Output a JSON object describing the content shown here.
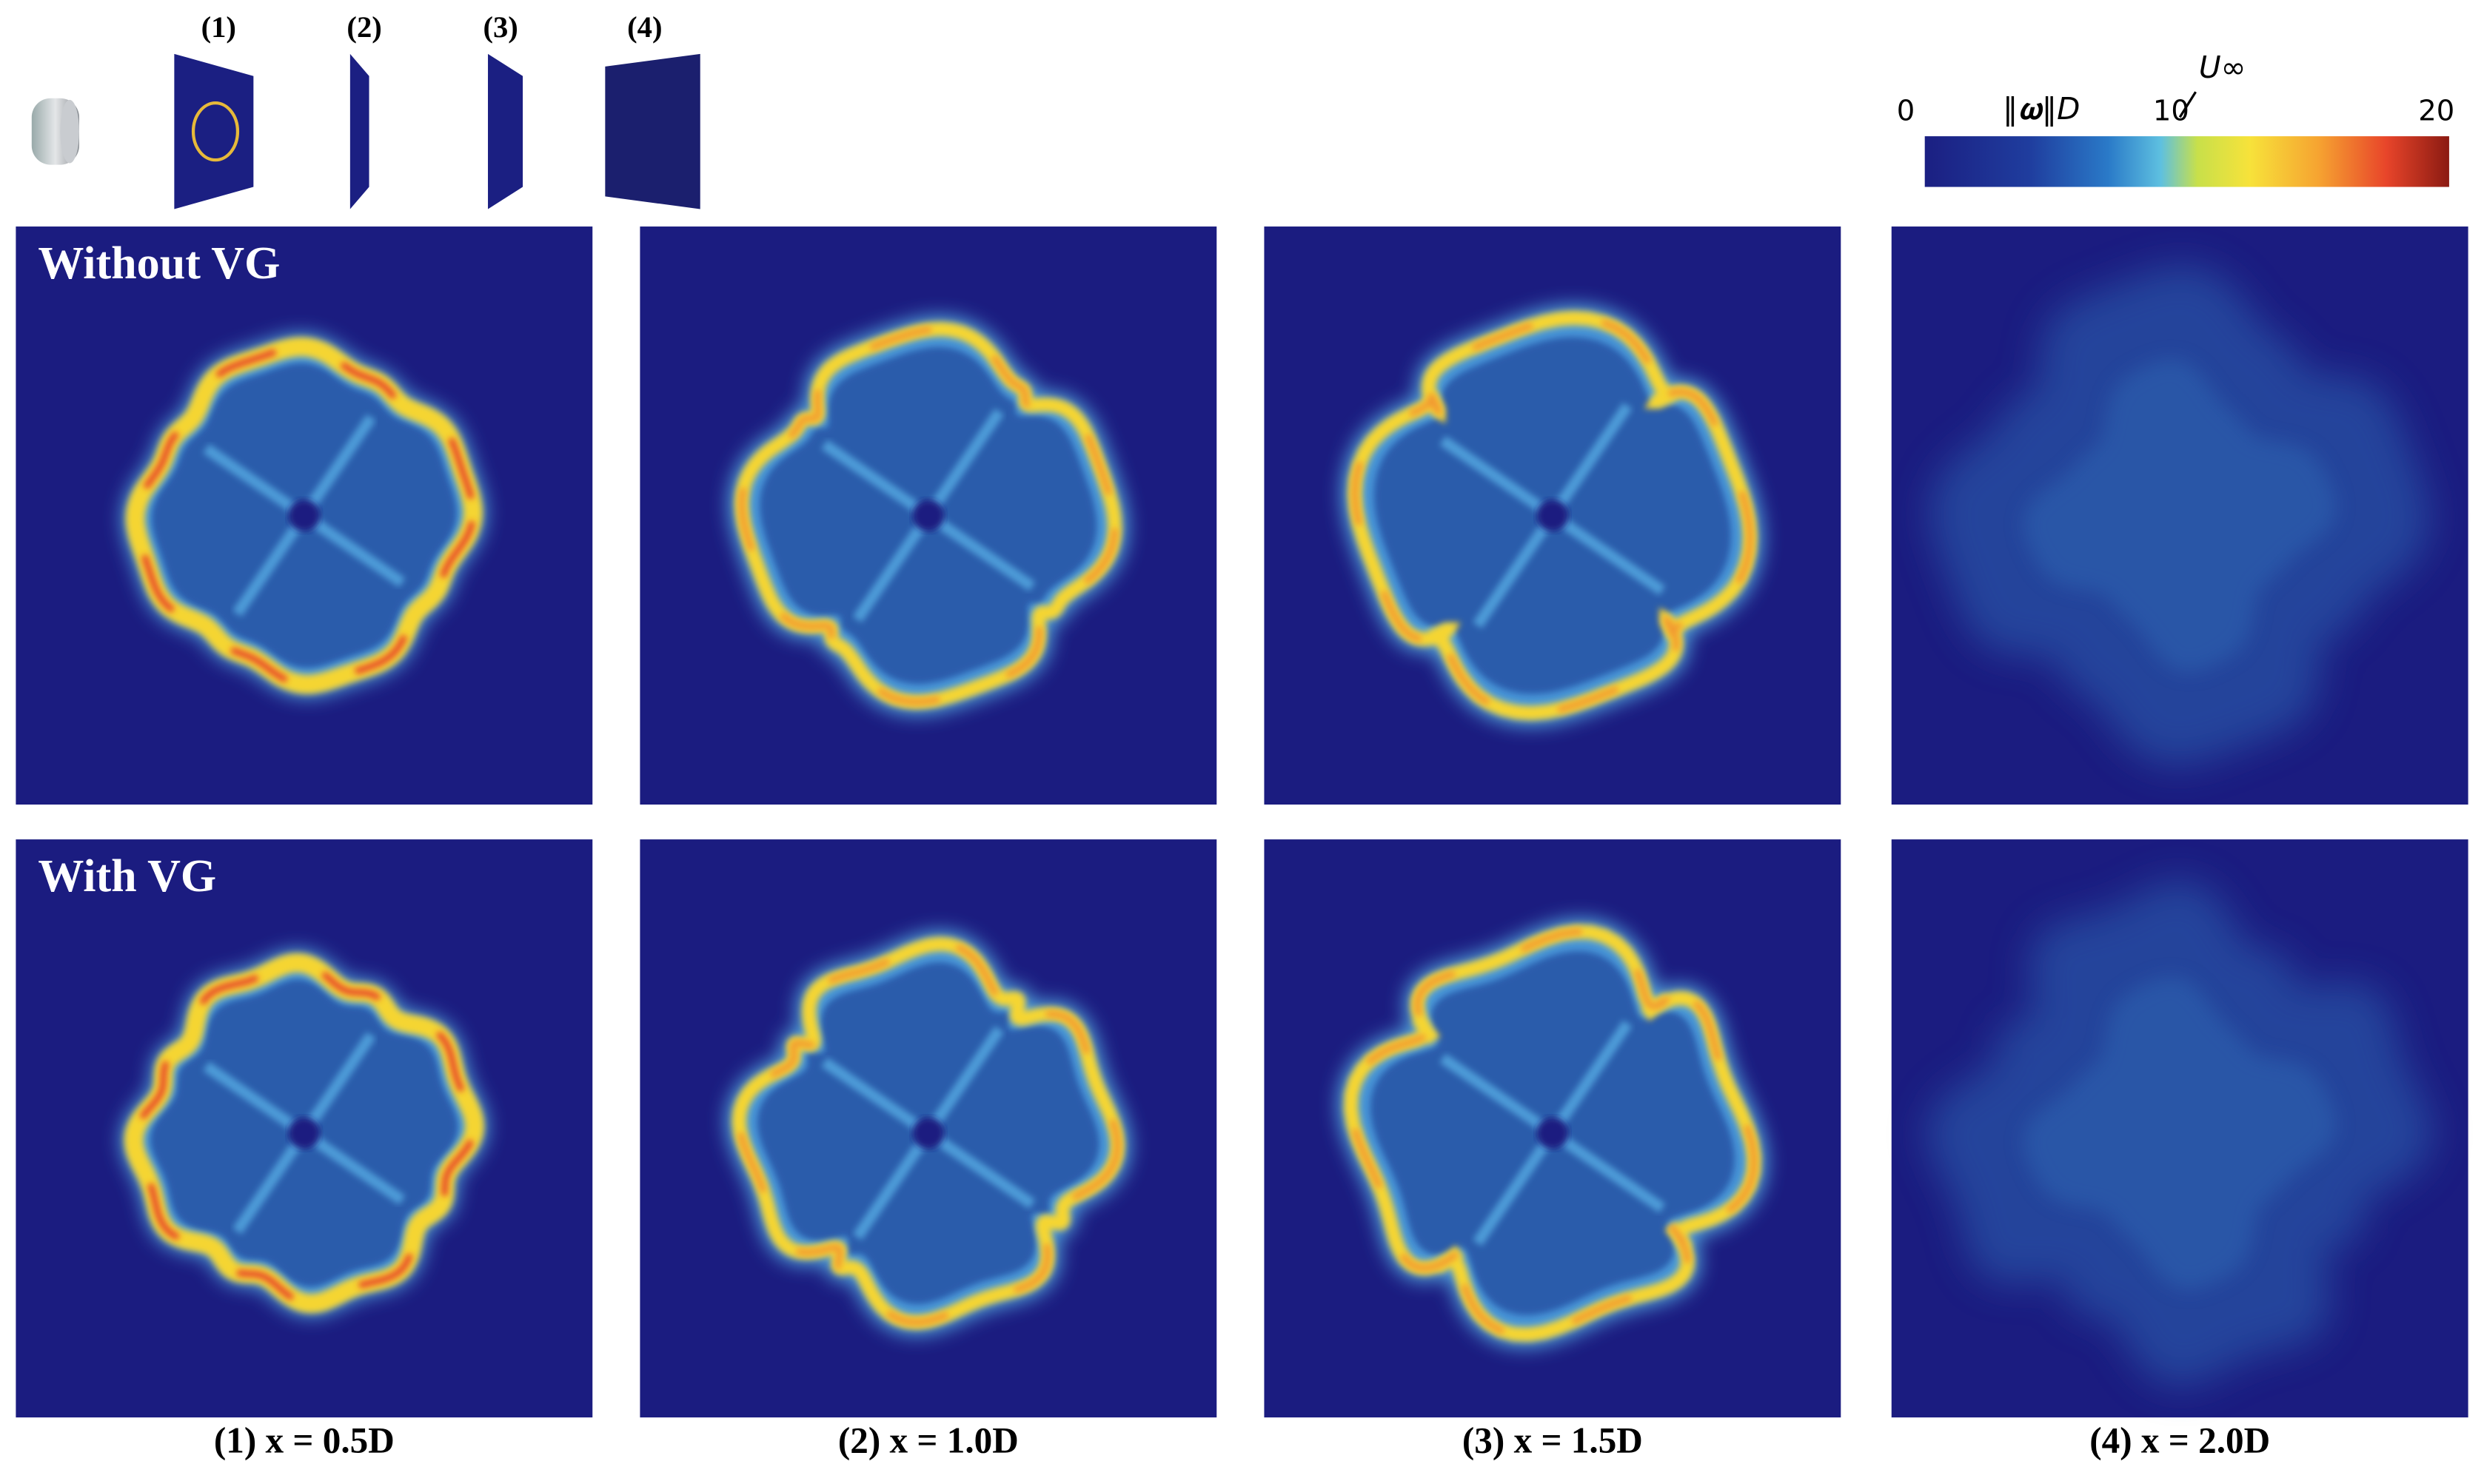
{
  "figure": {
    "thumbnail_labels": [
      "(1)",
      "(2)",
      "(3)",
      "(4)"
    ],
    "colorbar": {
      "label_numerator": "‖𝛚‖D",
      "label_denominator": "U∞",
      "lim": [
        0,
        20
      ],
      "ticks": [
        0,
        10,
        20
      ]
    },
    "row_labels": [
      "Without VG",
      "With VG"
    ],
    "column_captions": [
      "(1) x = 0.5D",
      "(2) x = 1.0D",
      "(3) x = 1.5D",
      "(4) x = 2.0D"
    ]
  }
}
